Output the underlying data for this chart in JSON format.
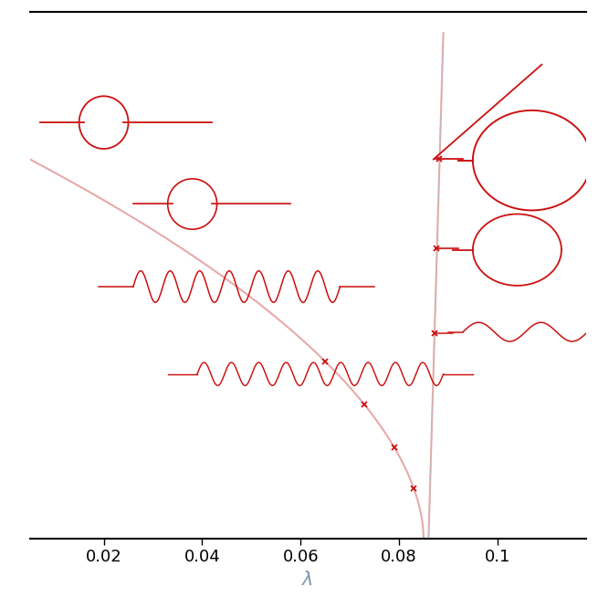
{
  "xlim": [
    0.005,
    0.118
  ],
  "ylim": [
    0.0,
    1.0
  ],
  "xlabel": "λ",
  "xlabel_fontsize": 15,
  "tick_color": "#7a9ab5",
  "tick_fontsize": 13,
  "xticks": [
    0.02,
    0.04,
    0.06,
    0.08,
    0.1
  ],
  "main_curve_color": "#e8aaaa",
  "branch_color": "#cc1111",
  "background": "#ffffff",
  "fig_width": 6.55,
  "fig_height": 6.55
}
